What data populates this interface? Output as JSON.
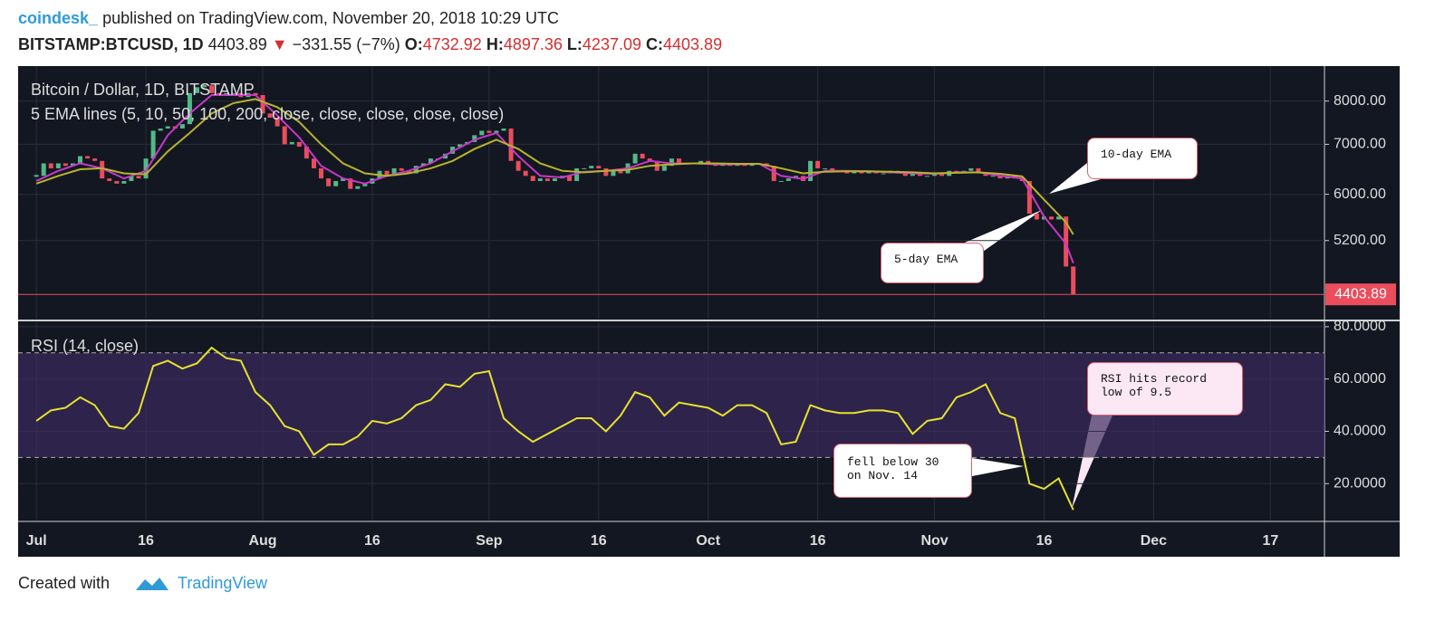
{
  "header": {
    "author": "coindesk_",
    "published": "published on TradingView.com, November 20, 2018 10:29 UTC",
    "symbol": "BITSTAMP:BTCUSD, 1D",
    "last": "4403.89",
    "change": "−331.55 (−7%)",
    "ohlc": [
      {
        "label": "O:",
        "value": "4732.92"
      },
      {
        "label": "H:",
        "value": "4897.36"
      },
      {
        "label": "L:",
        "value": "4237.09"
      },
      {
        "label": "C:",
        "value": "4403.89"
      }
    ]
  },
  "footer": {
    "created": "Created with",
    "brand": "TradingView"
  },
  "chart_data": [
    {
      "type": "candlestick",
      "title": "Bitcoin / Dollar, 1D, BITSTAMP",
      "subtitle": "5 EMA lines (5, 10, 50, 100, 200, close, close, close, close, close)",
      "log_scale": true,
      "up_color": "#53b987",
      "down_color": "#eb4d5c",
      "x": [
        0,
        1,
        2,
        3,
        4,
        5,
        6,
        7,
        8,
        9,
        10,
        11,
        12,
        13,
        14,
        15,
        16,
        17,
        18,
        19,
        20,
        21,
        22,
        23,
        24,
        25,
        26,
        27,
        28,
        29,
        30,
        31,
        32,
        33,
        34,
        35,
        36,
        37,
        38,
        39,
        40,
        41,
        42,
        43,
        44,
        45,
        46,
        47,
        48,
        49,
        50,
        51,
        52,
        53,
        54,
        55,
        56,
        57,
        58,
        59,
        60,
        61,
        62,
        63,
        64,
        65,
        66,
        67,
        68,
        69,
        70,
        71,
        72,
        73,
        74,
        75,
        76,
        77,
        78,
        79,
        80,
        81,
        82,
        83,
        84,
        85,
        86,
        87,
        88,
        89,
        90,
        91,
        92,
        93,
        94,
        95,
        96,
        97,
        98,
        99,
        100,
        101,
        102,
        103,
        104,
        105,
        106,
        107,
        108,
        109,
        110,
        111,
        112,
        113,
        114,
        115,
        116,
        117,
        118,
        119,
        120,
        121,
        122,
        123,
        124,
        125,
        126,
        127,
        128,
        129,
        130,
        131,
        132,
        133,
        134,
        135,
        136,
        137,
        138,
        139,
        140,
        141,
        142
      ],
      "close": [
        6350,
        6600,
        6500,
        6600,
        6550,
        6600,
        6750,
        6700,
        6650,
        6300,
        6250,
        6200,
        6250,
        6350,
        6300,
        6700,
        7300,
        7350,
        7400,
        7350,
        7450,
        8200,
        8350,
        8400,
        8200,
        8150,
        8200,
        8200,
        8100,
        8200,
        8150,
        7700,
        7600,
        7400,
        7000,
        7050,
        6950,
        6700,
        6500,
        6300,
        6150,
        6250,
        6300,
        6100,
        6150,
        6200,
        6300,
        6450,
        6350,
        6500,
        6450,
        6400,
        6550,
        6600,
        6700,
        6700,
        6800,
        6950,
        7000,
        7050,
        7200,
        7300,
        7250,
        7300,
        7350,
        6650,
        6450,
        6350,
        6250,
        6300,
        6250,
        6300,
        6350,
        6250,
        6500,
        6500,
        6550,
        6500,
        6350,
        6450,
        6400,
        6600,
        6800,
        6700,
        6650,
        6450,
        6550,
        6700,
        6600,
        6600,
        6600,
        6650,
        6600,
        6550,
        6600,
        6550,
        6600,
        6550,
        6600,
        6600,
        6550,
        6250,
        6250,
        6300,
        6350,
        6250,
        6650,
        6500,
        6500,
        6450,
        6450,
        6400,
        6450,
        6400,
        6450,
        6400,
        6400,
        6450,
        6400,
        6350,
        6400,
        6350,
        6350,
        6400,
        6350,
        6450,
        6400,
        6450,
        6500,
        6400,
        6350,
        6350,
        6300,
        6350,
        6300,
        6250,
        5650,
        5550,
        5600,
        5550,
        5600,
        4800,
        4403.89
      ],
      "series": [
        {
          "name": "5-day EMA",
          "color": "#c837c8",
          "x": [
            0,
            3,
            6,
            9,
            12,
            15,
            18,
            21,
            24,
            27,
            30,
            33,
            36,
            39,
            42,
            45,
            48,
            51,
            54,
            57,
            60,
            63,
            66,
            69,
            72,
            75,
            78,
            81,
            84,
            87,
            90,
            93,
            96,
            99,
            102,
            105,
            108,
            111,
            114,
            117,
            120,
            123,
            126,
            129,
            132,
            135,
            138,
            141,
            142
          ],
          "values": [
            6250,
            6450,
            6600,
            6500,
            6300,
            6450,
            7200,
            7700,
            8150,
            8150,
            8150,
            7650,
            7150,
            6550,
            6300,
            6200,
            6350,
            6450,
            6600,
            6850,
            7100,
            7250,
            6750,
            6350,
            6320,
            6430,
            6450,
            6500,
            6650,
            6600,
            6600,
            6580,
            6580,
            6590,
            6350,
            6290,
            6450,
            6450,
            6440,
            6420,
            6400,
            6390,
            6420,
            6420,
            6350,
            6300,
            5600,
            5150,
            4850
          ]
        },
        {
          "name": "10-day EMA",
          "color": "#b8b32c",
          "x": [
            0,
            3,
            6,
            9,
            12,
            15,
            18,
            21,
            24,
            27,
            30,
            33,
            36,
            39,
            42,
            45,
            48,
            51,
            54,
            57,
            60,
            63,
            66,
            69,
            72,
            75,
            78,
            81,
            84,
            87,
            90,
            93,
            96,
            99,
            102,
            105,
            108,
            111,
            114,
            117,
            120,
            123,
            126,
            129,
            132,
            135,
            138,
            141,
            142
          ],
          "values": [
            6200,
            6350,
            6480,
            6500,
            6400,
            6380,
            6850,
            7250,
            7700,
            7950,
            8050,
            7850,
            7500,
            7000,
            6600,
            6400,
            6350,
            6400,
            6500,
            6650,
            6900,
            7100,
            6900,
            6600,
            6450,
            6420,
            6450,
            6470,
            6550,
            6580,
            6600,
            6600,
            6590,
            6590,
            6500,
            6400,
            6430,
            6440,
            6440,
            6430,
            6420,
            6400,
            6410,
            6420,
            6390,
            6340,
            5900,
            5500,
            5300
          ]
        }
      ],
      "xlim": [
        -2.5,
        176.4
      ],
      "ylim": [
        4086,
        8913
      ],
      "xticks": [
        {
          "value": 0,
          "label": "Jul"
        },
        {
          "value": 15,
          "label": "16"
        },
        {
          "value": 31,
          "label": "Aug"
        },
        {
          "value": 46,
          "label": "16"
        },
        {
          "value": 62,
          "label": "Sep"
        },
        {
          "value": 77,
          "label": "16"
        },
        {
          "value": 92,
          "label": "Oct"
        },
        {
          "value": 107,
          "label": "16"
        },
        {
          "value": 123,
          "label": "Nov"
        },
        {
          "value": 138,
          "label": "16"
        },
        {
          "value": 153,
          "label": "Dec"
        },
        {
          "value": 169,
          "label": "17"
        }
      ],
      "yticks": [
        {
          "value": 8000,
          "label": "8000.00"
        },
        {
          "value": 7000,
          "label": "7000.00"
        },
        {
          "value": 6000,
          "label": "6000.00"
        },
        {
          "value": 5200,
          "label": "5200.00"
        }
      ],
      "grid": true,
      "annotations": [
        "10-day EMA",
        "5-day EMA"
      ]
    },
    {
      "type": "line",
      "title": "RSI (14, close)",
      "band": [
        30,
        70
      ],
      "band_color": "#3b2a5c",
      "series": [
        {
          "name": "RSI",
          "color": "#e6e22e",
          "x": [
            0,
            2,
            4,
            6,
            8,
            10,
            12,
            14,
            16,
            18,
            20,
            22,
            24,
            26,
            28,
            30,
            32,
            34,
            36,
            38,
            40,
            42,
            44,
            46,
            48,
            50,
            52,
            54,
            56,
            58,
            60,
            62,
            64,
            66,
            68,
            70,
            72,
            74,
            76,
            78,
            80,
            82,
            84,
            86,
            88,
            90,
            92,
            94,
            96,
            98,
            100,
            102,
            104,
            106,
            108,
            110,
            112,
            114,
            116,
            118,
            120,
            122,
            124,
            126,
            128,
            130,
            132,
            134,
            136,
            138,
            140,
            142
          ],
          "values": [
            44,
            48,
            49,
            53,
            50,
            42,
            41,
            47,
            65,
            67,
            64,
            66,
            72,
            68,
            67,
            55,
            50,
            42,
            40,
            31,
            35,
            35,
            38,
            44,
            43,
            45,
            50,
            52,
            58,
            57,
            62,
            63,
            45,
            40,
            36,
            39,
            42,
            45,
            45,
            40,
            46,
            55,
            53,
            46,
            51,
            50,
            49,
            46,
            50,
            50,
            47,
            35,
            36,
            50,
            48,
            47,
            47,
            48,
            48,
            47,
            39,
            44,
            45,
            53,
            55,
            58,
            47,
            45,
            20,
            18,
            22,
            10
          ]
        }
      ],
      "xlim": [
        -2.5,
        176.4
      ],
      "ylim": [
        5.9,
        81.7
      ],
      "yticks": [
        {
          "value": 80,
          "label": "80.0000"
        },
        {
          "value": 60,
          "label": "60.0000"
        },
        {
          "value": 40,
          "label": "40.0000"
        },
        {
          "value": 20,
          "label": "20.0000"
        }
      ],
      "grid": true,
      "annotations": [
        "fell below 30\non Nov. 14",
        "RSI hits record\nlow of 9.5"
      ]
    }
  ]
}
